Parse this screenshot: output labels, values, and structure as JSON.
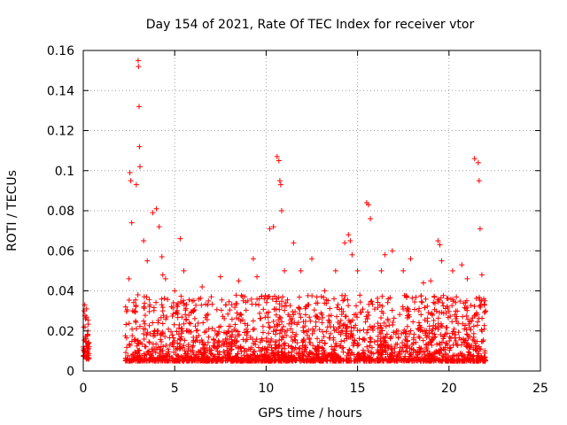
{
  "colors": {
    "series": "#ff0000",
    "grid": "#a0a0a0",
    "axis": "#000000",
    "background": "#ffffff"
  },
  "chart_data": {
    "type": "scatter",
    "title": "Day 154 of 2021, Rate Of TEC Index for receiver vtor",
    "xlabel": "GPS time / hours",
    "ylabel": "ROTI / TECUs",
    "xlim": [
      0,
      25
    ],
    "ylim": [
      0,
      0.16
    ],
    "xticks": [
      0,
      5,
      10,
      15,
      20,
      25
    ],
    "yticks": [
      0,
      0.02,
      0.04,
      0.06,
      0.08,
      0.1,
      0.12,
      0.14,
      0.16
    ],
    "ytick_labels": [
      "0",
      "0.02",
      "0.04",
      "0.06",
      "0.08",
      "0.1",
      "0.12",
      "0.14",
      "0.16"
    ],
    "grid": true,
    "grid_style": "dotted",
    "legend": "none",
    "marker": "plus",
    "data_gap_hours": [
      0.35,
      2.3
    ],
    "series": [
      {
        "x": [
          0.0,
          0.05,
          0.1,
          0.15,
          0.2,
          0.25,
          0.3,
          0.08,
          0.12,
          0.18,
          0.22,
          0.27,
          2.5,
          2.55,
          2.6,
          2.65,
          2.7,
          2.9,
          3.0,
          3.02,
          3.05,
          3.07,
          3.1,
          3.3,
          3.5,
          3.8,
          4.0,
          4.15,
          4.3,
          4.35,
          4.5,
          5.0,
          5.3,
          5.5,
          6.0,
          6.5,
          7.0,
          7.5,
          7.8,
          8.5,
          9.0,
          9.3,
          9.5,
          9.9,
          10.2,
          10.4,
          10.6,
          10.7,
          10.75,
          10.8,
          10.85,
          11.0,
          11.5,
          11.9,
          12.5,
          13.2,
          13.8,
          14.3,
          14.5,
          14.6,
          14.7,
          15.0,
          15.5,
          15.6,
          15.7,
          16.3,
          16.5,
          16.9,
          17.5,
          17.9,
          18.6,
          19.0,
          19.4,
          19.5,
          19.6,
          20.2,
          20.7,
          21.0,
          21.4,
          21.6,
          21.65,
          21.7,
          21.8,
          21.9,
          22.0
        ],
        "y": [
          0.012,
          0.03,
          0.022,
          0.016,
          0.009,
          0.02,
          0.014,
          0.033,
          0.026,
          0.031,
          0.018,
          0.011,
          0.046,
          0.099,
          0.095,
          0.074,
          0.03,
          0.093,
          0.155,
          0.152,
          0.132,
          0.112,
          0.102,
          0.065,
          0.055,
          0.079,
          0.081,
          0.072,
          0.057,
          0.048,
          0.046,
          0.04,
          0.066,
          0.05,
          0.03,
          0.042,
          0.037,
          0.047,
          0.033,
          0.045,
          0.035,
          0.056,
          0.047,
          0.036,
          0.071,
          0.072,
          0.107,
          0.105,
          0.095,
          0.093,
          0.08,
          0.05,
          0.064,
          0.05,
          0.056,
          0.04,
          0.05,
          0.064,
          0.068,
          0.065,
          0.058,
          0.05,
          0.084,
          0.083,
          0.076,
          0.05,
          0.058,
          0.06,
          0.05,
          0.056,
          0.044,
          0.045,
          0.065,
          0.063,
          0.055,
          0.05,
          0.053,
          0.046,
          0.106,
          0.104,
          0.095,
          0.071,
          0.048,
          0.036,
          0.03
        ]
      }
    ]
  }
}
